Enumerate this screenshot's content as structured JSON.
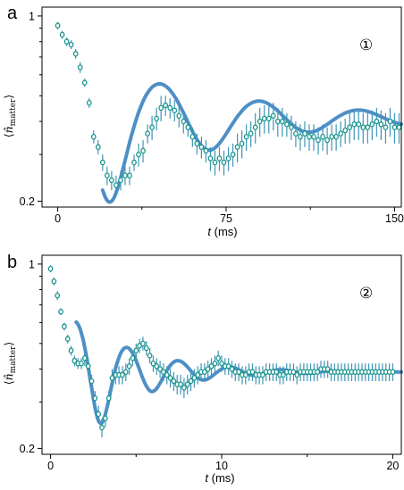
{
  "colors": {
    "fit": "#4f8fc6",
    "marker": "#17958c",
    "errorbar": "#3f95b7"
  },
  "chart_data": [
    {
      "type": "scatter",
      "panel_letter": "a",
      "marker_label": "①",
      "ylabel_symbol": "n̂",
      "ylabel_sub": "matter",
      "xlabel_var": "t",
      "xlabel_unit": " (ms)",
      "xlim": [
        -7,
        153
      ],
      "ylim": [
        0.19,
        1.08
      ],
      "yscale": "log",
      "xticks": [
        0,
        75,
        150
      ],
      "xticks_minor": [
        37.5,
        112.5
      ],
      "yticks": [
        0.2,
        1
      ],
      "yticks_minor": [
        0.3,
        0.4,
        0.5,
        0.6,
        0.7,
        0.8,
        0.9
      ],
      "fit_x0": 20,
      "fit_model": {
        "base": 0.41,
        "amplitude": 0.21,
        "decay_ms": 58,
        "period_ms": 44.3,
        "trough_ms": 24
      },
      "series": [
        {
          "x": [
            0,
            2,
            4,
            6,
            8,
            10,
            12,
            14,
            16,
            18,
            20,
            22,
            24,
            26,
            28,
            30,
            32,
            34,
            36,
            38,
            40,
            42,
            44,
            46,
            48,
            50,
            52,
            54,
            56,
            58,
            60,
            62,
            64,
            66,
            68,
            70,
            72,
            74,
            76,
            78,
            80,
            82,
            84,
            86,
            88,
            90,
            92,
            94,
            96,
            98,
            100,
            102,
            104,
            106,
            108,
            110,
            112,
            114,
            116,
            118,
            120,
            122,
            124,
            126,
            128,
            130,
            132,
            134,
            136,
            138,
            140,
            142,
            144,
            146,
            148,
            150,
            152
          ],
          "y": [
            0.92,
            0.85,
            0.8,
            0.78,
            0.72,
            0.64,
            0.56,
            0.47,
            0.35,
            0.32,
            0.28,
            0.25,
            0.24,
            0.23,
            0.24,
            0.25,
            0.25,
            0.28,
            0.3,
            0.31,
            0.36,
            0.38,
            0.41,
            0.45,
            0.46,
            0.45,
            0.44,
            0.42,
            0.4,
            0.38,
            0.35,
            0.33,
            0.32,
            0.31,
            0.29,
            0.28,
            0.29,
            0.28,
            0.29,
            0.3,
            0.32,
            0.33,
            0.35,
            0.36,
            0.38,
            0.4,
            0.41,
            0.41,
            0.42,
            0.4,
            0.4,
            0.39,
            0.38,
            0.36,
            0.35,
            0.36,
            0.35,
            0.35,
            0.34,
            0.35,
            0.34,
            0.35,
            0.35,
            0.36,
            0.37,
            0.38,
            0.39,
            0.39,
            0.38,
            0.38,
            0.39,
            0.4,
            0.39,
            0.38,
            0.4,
            0.38,
            0.38
          ],
          "err": [
            0.03,
            0.03,
            0.03,
            0.03,
            0.03,
            0.03,
            0.02,
            0.02,
            0.02,
            0.02,
            0.02,
            0.02,
            0.02,
            0.02,
            0.02,
            0.02,
            0.02,
            0.02,
            0.03,
            0.03,
            0.03,
            0.04,
            0.04,
            0.05,
            0.04,
            0.04,
            0.04,
            0.04,
            0.04,
            0.03,
            0.03,
            0.03,
            0.03,
            0.03,
            0.03,
            0.03,
            0.03,
            0.03,
            0.03,
            0.03,
            0.04,
            0.04,
            0.04,
            0.04,
            0.05,
            0.05,
            0.05,
            0.05,
            0.05,
            0.05,
            0.05,
            0.04,
            0.04,
            0.04,
            0.04,
            0.04,
            0.04,
            0.04,
            0.04,
            0.04,
            0.04,
            0.04,
            0.04,
            0.04,
            0.04,
            0.05,
            0.05,
            0.05,
            0.05,
            0.05,
            0.05,
            0.05,
            0.05,
            0.05,
            0.05,
            0.05,
            0.05
          ]
        }
      ]
    },
    {
      "type": "scatter",
      "panel_letter": "b",
      "marker_label": "②",
      "ylabel_symbol": "n̂",
      "ylabel_sub": "matter",
      "xlabel_var": "t",
      "xlabel_unit": " (ms)",
      "xlim": [
        -0.5,
        20.5
      ],
      "ylim": [
        0.19,
        1.08
      ],
      "yscale": "log",
      "xticks": [
        0,
        10,
        20
      ],
      "xticks_minor": [
        5,
        15
      ],
      "yticks": [
        0.2,
        1
      ],
      "yticks_minor": [
        0.3,
        0.4,
        0.5,
        0.6,
        0.7,
        0.8,
        0.9
      ],
      "fit_x0": 1.5,
      "fit_model": {
        "base": 0.39,
        "amplitude": 0.14,
        "decay_ms": 3.6,
        "period_ms": 3.0,
        "trough_ms": 3.0
      },
      "series": [
        {
          "x": [
            0,
            0.2,
            0.4,
            0.6,
            0.8,
            1,
            1.2,
            1.4,
            1.6,
            1.8,
            2,
            2.2,
            2.4,
            2.6,
            2.8,
            3,
            3.2,
            3.4,
            3.6,
            3.8,
            4,
            4.2,
            4.4,
            4.6,
            4.8,
            5,
            5.2,
            5.4,
            5.6,
            5.8,
            6,
            6.2,
            6.4,
            6.6,
            6.8,
            7,
            7.2,
            7.4,
            7.6,
            7.8,
            8,
            8.2,
            8.4,
            8.6,
            8.8,
            9,
            9.2,
            9.4,
            9.6,
            9.8,
            10,
            10.2,
            10.4,
            10.6,
            10.8,
            11,
            11.2,
            11.4,
            11.6,
            11.8,
            12,
            12.2,
            12.4,
            12.6,
            12.8,
            13,
            13.2,
            13.4,
            13.6,
            13.8,
            14,
            14.2,
            14.4,
            14.6,
            14.8,
            15,
            15.2,
            15.4,
            15.6,
            15.8,
            16,
            16.2,
            16.4,
            16.6,
            16.8,
            17,
            17.2,
            17.4,
            17.6,
            17.8,
            18,
            18.2,
            18.4,
            18.6,
            18.8,
            19,
            19.2,
            19.4,
            19.6,
            19.8,
            20
          ],
          "y": [
            0.96,
            0.86,
            0.76,
            0.66,
            0.58,
            0.52,
            0.47,
            0.43,
            0.42,
            0.42,
            0.44,
            0.41,
            0.36,
            0.31,
            0.27,
            0.24,
            0.26,
            0.31,
            0.37,
            0.38,
            0.38,
            0.38,
            0.39,
            0.41,
            0.44,
            0.47,
            0.49,
            0.5,
            0.48,
            0.45,
            0.42,
            0.41,
            0.4,
            0.39,
            0.38,
            0.37,
            0.36,
            0.35,
            0.35,
            0.34,
            0.35,
            0.36,
            0.37,
            0.38,
            0.39,
            0.39,
            0.4,
            0.41,
            0.42,
            0.44,
            0.42,
            0.41,
            0.41,
            0.4,
            0.39,
            0.39,
            0.38,
            0.38,
            0.39,
            0.39,
            0.38,
            0.38,
            0.38,
            0.39,
            0.39,
            0.39,
            0.39,
            0.38,
            0.38,
            0.39,
            0.39,
            0.39,
            0.38,
            0.39,
            0.39,
            0.39,
            0.39,
            0.39,
            0.39,
            0.4,
            0.4,
            0.4,
            0.39,
            0.39,
            0.39,
            0.39,
            0.39,
            0.39,
            0.39,
            0.39,
            0.39,
            0.39,
            0.39,
            0.39,
            0.39,
            0.39,
            0.39,
            0.39,
            0.39,
            0.39,
            0.39
          ],
          "err": [
            0.03,
            0.03,
            0.03,
            0.02,
            0.02,
            0.02,
            0.02,
            0.02,
            0.02,
            0.02,
            0.03,
            0.03,
            0.02,
            0.02,
            0.02,
            0.02,
            0.02,
            0.02,
            0.03,
            0.03,
            0.03,
            0.03,
            0.03,
            0.03,
            0.03,
            0.03,
            0.03,
            0.03,
            0.03,
            0.03,
            0.03,
            0.03,
            0.03,
            0.03,
            0.03,
            0.03,
            0.03,
            0.03,
            0.03,
            0.03,
            0.03,
            0.03,
            0.03,
            0.03,
            0.03,
            0.03,
            0.03,
            0.03,
            0.03,
            0.03,
            0.03,
            0.03,
            0.03,
            0.03,
            0.03,
            0.03,
            0.03,
            0.03,
            0.03,
            0.03,
            0.03,
            0.03,
            0.03,
            0.03,
            0.03,
            0.03,
            0.03,
            0.03,
            0.03,
            0.03,
            0.03,
            0.03,
            0.03,
            0.03,
            0.03,
            0.03,
            0.03,
            0.03,
            0.03,
            0.03,
            0.03,
            0.03,
            0.03,
            0.03,
            0.03,
            0.03,
            0.03,
            0.03,
            0.03,
            0.03,
            0.03,
            0.03,
            0.03,
            0.03,
            0.03,
            0.03,
            0.03,
            0.03,
            0.03,
            0.03,
            0.03
          ]
        }
      ]
    }
  ]
}
